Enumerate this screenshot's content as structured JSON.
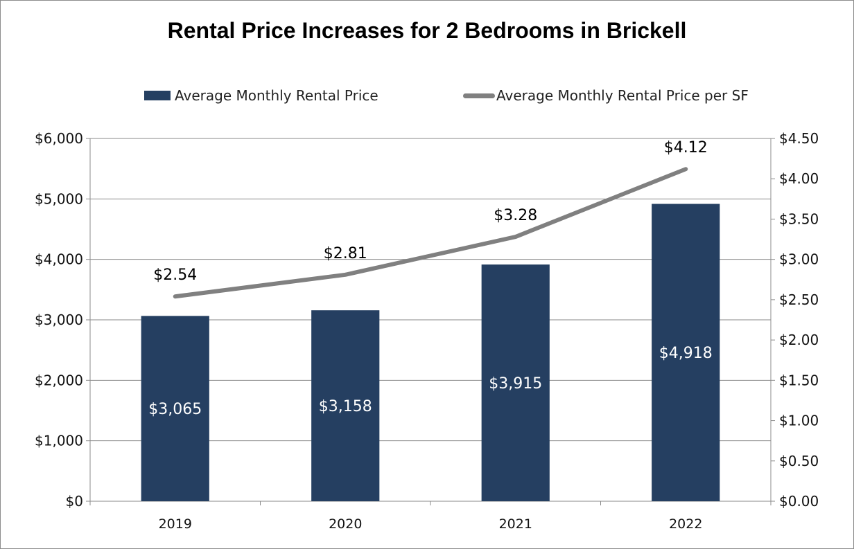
{
  "chart_data": {
    "type": "bar",
    "title": "Rental Price Increases for 2 Bedrooms in Brickell",
    "categories": [
      "2019",
      "2020",
      "2021",
      "2022"
    ],
    "series": [
      {
        "name": "Average Monthly Rental Price",
        "type": "bar",
        "axis": "left",
        "values": [
          3065,
          3158,
          3915,
          4918
        ],
        "labels": [
          "$3,065",
          "$3,158",
          "$3,915",
          "$4,918"
        ],
        "color": "#253f61"
      },
      {
        "name": "Average Monthly Rental Price per SF",
        "type": "line",
        "axis": "right",
        "values": [
          2.54,
          2.81,
          3.28,
          4.12
        ],
        "labels": [
          "$2.54",
          "$2.81",
          "$3.28",
          "$4.12"
        ],
        "color": "#808080"
      }
    ],
    "y_left": {
      "ylim": [
        0,
        6000
      ],
      "ticks": [
        0,
        1000,
        2000,
        3000,
        4000,
        5000,
        6000
      ],
      "tick_labels": [
        "$0",
        "$1,000",
        "$2,000",
        "$3,000",
        "$4,000",
        "$5,000",
        "$6,000"
      ]
    },
    "y_right": {
      "ylim": [
        0,
        4.5
      ],
      "ticks": [
        0,
        0.5,
        1,
        1.5,
        2,
        2.5,
        3,
        3.5,
        4,
        4.5
      ],
      "tick_labels": [
        "$0.00",
        "$0.50",
        "$1.00",
        "$1.50",
        "$2.00",
        "$2.50",
        "$3.00",
        "$3.50",
        "$4.00",
        "$4.50"
      ]
    },
    "grid": true,
    "legend_position": "top"
  }
}
